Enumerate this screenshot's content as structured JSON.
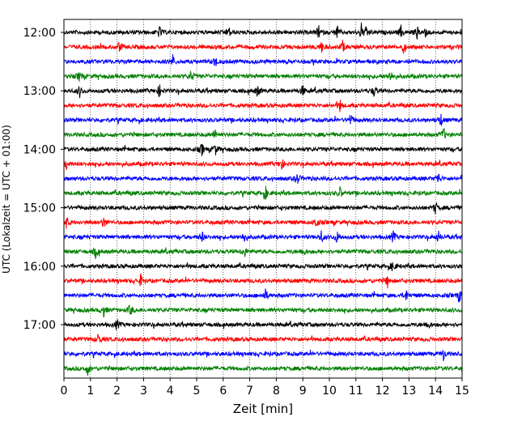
{
  "chart_data": {
    "type": "line",
    "xlabel": "Zeit  [min]",
    "ylabel": "UTC (Lokalzeit = UTC + 01:00)",
    "x_range": [
      0,
      15
    ],
    "x_ticks": [
      0,
      1,
      2,
      3,
      4,
      5,
      6,
      7,
      8,
      9,
      10,
      11,
      12,
      13,
      14,
      15
    ],
    "y_tick_labels": [
      "12:00",
      "13:00",
      "14:00",
      "15:00",
      "16:00",
      "17:00"
    ],
    "trace_start_times": [
      "12:00",
      "12:15",
      "12:30",
      "12:45",
      "13:00",
      "13:15",
      "13:30",
      "13:45",
      "14:00",
      "14:15",
      "14:30",
      "14:45",
      "15:00",
      "15:15",
      "15:30",
      "15:45",
      "16:00",
      "16:15",
      "16:30",
      "16:45",
      "17:00",
      "17:15",
      "17:30",
      "17:45"
    ],
    "trace_colors": [
      "#000000",
      "#ff0000",
      "#0000ff",
      "#008000"
    ],
    "grid_x": true,
    "grid_style": "dotted",
    "trace_events_min": [
      [
        3.6,
        6.2,
        9.6,
        10.3,
        11.2,
        11.4,
        12.7,
        13.3,
        13.6
      ],
      [
        2.1,
        9.7,
        10.5,
        12.8
      ],
      [
        4.1,
        5.7
      ],
      [
        0.6,
        4.8,
        12.3
      ],
      [
        0.6,
        3.6,
        7.3,
        9.0,
        11.7
      ],
      [
        10.4
      ],
      [
        10.8,
        14.2
      ],
      [
        5.7,
        14.3
      ],
      [
        5.2,
        5.7
      ],
      [
        0.1,
        8.2
      ],
      [
        8.8,
        14.1
      ],
      [
        7.6,
        10.4
      ],
      [
        14.0
      ],
      [
        0.1,
        1.5,
        9.5
      ],
      [
        5.2,
        6.8,
        9.7,
        10.3,
        12.4,
        14.1
      ],
      [
        1.2,
        6.8,
        9.0
      ],
      [
        12.4
      ],
      [
        2.9,
        12.2
      ],
      [
        7.6,
        12.9,
        14.9
      ],
      [
        1.5,
        2.5
      ],
      [
        2.0,
        13.7
      ],
      [
        1.3
      ],
      [
        14.3
      ],
      [
        0.9
      ]
    ]
  }
}
